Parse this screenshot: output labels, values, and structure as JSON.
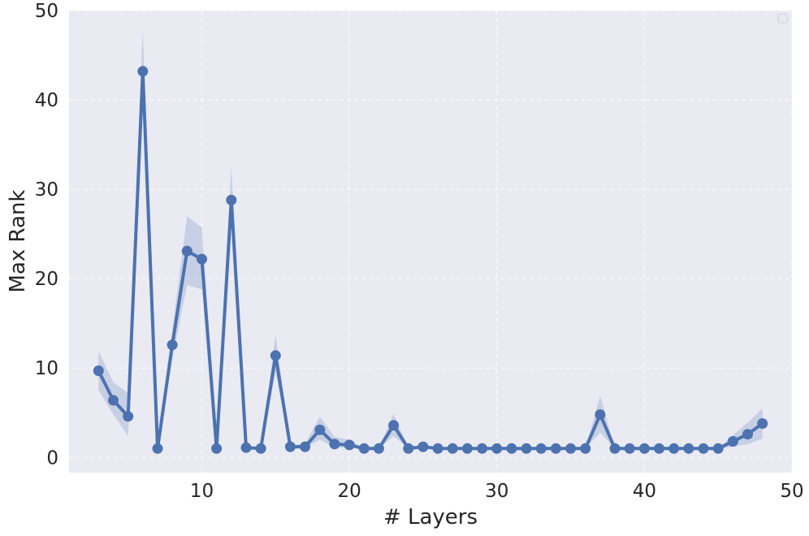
{
  "chart_data": {
    "type": "line",
    "xlabel": "# Layers",
    "ylabel": "Max Rank",
    "xlim": [
      1,
      50
    ],
    "ylim": [
      -1.7,
      50
    ],
    "xticks": [
      10,
      20,
      30,
      40,
      50
    ],
    "yticks": [
      0,
      10,
      20,
      30,
      40,
      50
    ],
    "grid": true,
    "legend": "top-right",
    "colors": {
      "line": "#4c72b0",
      "band": "#4c72b0",
      "plot_bg": "#eaeaf2",
      "grid": "#ffffff"
    },
    "series": [
      {
        "x": [
          3,
          4,
          5,
          6,
          7,
          8,
          9,
          10,
          11,
          12,
          13,
          14,
          15,
          16,
          17,
          18,
          19,
          20,
          21,
          22,
          23,
          24,
          25,
          26,
          27,
          28,
          29,
          30,
          31,
          32,
          33,
          34,
          35,
          36,
          37,
          38,
          39,
          40,
          41,
          42,
          43,
          44,
          45,
          46,
          47,
          48
        ],
        "y": [
          9.7,
          6.4,
          4.6,
          43.2,
          1.0,
          12.6,
          23.1,
          22.2,
          1.0,
          28.8,
          1.1,
          1.0,
          11.4,
          1.2,
          1.2,
          3.1,
          1.5,
          1.4,
          1.0,
          1.0,
          3.6,
          1.0,
          1.2,
          1.0,
          1.0,
          1.0,
          1.0,
          1.0,
          1.0,
          1.0,
          1.0,
          1.0,
          1.0,
          1.0,
          4.8,
          1.0,
          1.0,
          1.0,
          1.0,
          1.0,
          1.0,
          1.0,
          1.0,
          1.8,
          2.6,
          3.8
        ],
        "lower": [
          7.5,
          4.8,
          2.4,
          40.5,
          1.0,
          11.0,
          19.3,
          18.8,
          1.0,
          27.0,
          1.0,
          1.0,
          9.5,
          1.0,
          1.0,
          2.0,
          1.1,
          1.1,
          1.0,
          1.0,
          2.4,
          1.0,
          1.0,
          1.0,
          1.0,
          1.0,
          1.0,
          1.0,
          1.0,
          1.0,
          1.0,
          1.0,
          1.0,
          1.0,
          2.8,
          1.0,
          1.0,
          1.0,
          1.0,
          1.0,
          1.0,
          1.0,
          1.0,
          1.2,
          1.5,
          2.1
        ],
        "upper": [
          11.9,
          8.4,
          7.2,
          47.9,
          1.0,
          14.3,
          27.0,
          25.7,
          1.0,
          32.5,
          1.2,
          1.0,
          13.7,
          1.4,
          1.5,
          4.6,
          2.3,
          2.0,
          1.0,
          1.0,
          4.9,
          1.0,
          1.4,
          1.0,
          1.0,
          1.0,
          1.0,
          1.0,
          1.0,
          1.0,
          1.0,
          1.0,
          1.0,
          1.0,
          6.9,
          1.0,
          1.0,
          1.0,
          1.0,
          1.0,
          1.0,
          1.0,
          1.0,
          2.5,
          3.9,
          5.5
        ]
      }
    ]
  }
}
